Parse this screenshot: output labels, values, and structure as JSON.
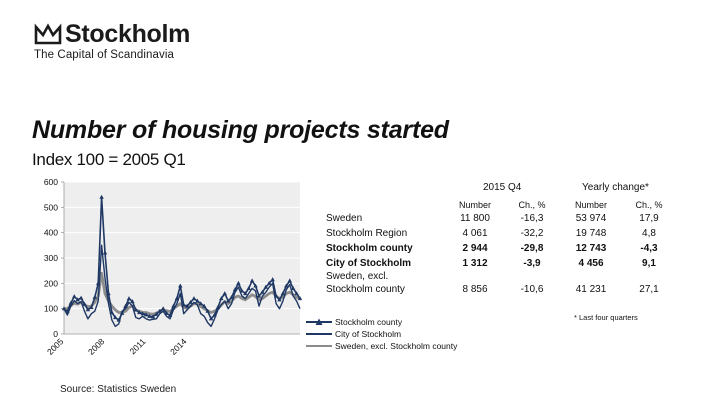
{
  "brand": {
    "name": "Stockholm",
    "tagline": "The Capital of Scandinavia"
  },
  "title": "Number of housing projects started",
  "subtitle": "Index 100 = 2005 Q1",
  "source": "Source: Statistics Sweden",
  "colors": {
    "county": "#1f3864",
    "city": "#1f3864",
    "sweden": "#8c8c8c",
    "plot_bg": "#eeeeee"
  },
  "chart_data": {
    "type": "line",
    "title": "Number of housing projects started",
    "subtitle": "Index 100 = 2005 Q1",
    "xlabel": "",
    "ylabel": "",
    "ylim": [
      0,
      600
    ],
    "yticks": [
      0,
      100,
      200,
      300,
      400,
      500,
      600
    ],
    "xtick_labels": [
      "2005",
      "2008",
      "2011",
      "2014"
    ],
    "x_start": "2005 Q1",
    "x_end": "2015 Q4",
    "series": [
      {
        "name": "Stockholm county",
        "marker": "triangle",
        "values": [
          100,
          88,
          122,
          148,
          135,
          142,
          118,
          96,
          105,
          145,
          200,
          540,
          320,
          160,
          85,
          65,
          55,
          82,
          110,
          140,
          128,
          95,
          85,
          80,
          76,
          70,
          68,
          78,
          90,
          100,
          82,
          73,
          110,
          140,
          190,
          115,
          110,
          125,
          140,
          130,
          120,
          110,
          90,
          60,
          75,
          105,
          140,
          160,
          130,
          145,
          175,
          200,
          170,
          160,
          180,
          210,
          190,
          150,
          165,
          185,
          200,
          215,
          150,
          135,
          160,
          190,
          210,
          180,
          160,
          140
        ]
      },
      {
        "name": "City of Stockholm",
        "marker": "line",
        "values": [
          100,
          75,
          110,
          132,
          120,
          128,
          90,
          60,
          80,
          90,
          130,
          350,
          220,
          120,
          55,
          30,
          40,
          90,
          100,
          125,
          110,
          65,
          60,
          70,
          60,
          55,
          58,
          60,
          80,
          90,
          70,
          60,
          95,
          120,
          160,
          80,
          95,
          110,
          125,
          115,
          80,
          70,
          45,
          30,
          60,
          95,
          115,
          130,
          100,
          120,
          165,
          185,
          150,
          140,
          160,
          180,
          170,
          110,
          150,
          165,
          185,
          200,
          120,
          100,
          130,
          175,
          195,
          150,
          130,
          100
        ]
      },
      {
        "name": "Sweden, excl. Stockholm county",
        "marker": "line",
        "values": [
          100,
          100,
          112,
          122,
          118,
          125,
          115,
          108,
          110,
          125,
          150,
          240,
          160,
          130,
          110,
          95,
          85,
          85,
          90,
          105,
          110,
          95,
          90,
          85,
          85,
          80,
          78,
          82,
          90,
          95,
          92,
          88,
          100,
          110,
          120,
          105,
          102,
          110,
          120,
          118,
          108,
          100,
          92,
          85,
          90,
          100,
          115,
          128,
          120,
          130,
          145,
          150,
          140,
          135,
          145,
          155,
          148,
          135,
          140,
          150,
          160,
          165,
          150,
          140,
          145,
          160,
          165,
          155,
          145,
          140
        ]
      }
    ]
  },
  "table": {
    "period_header": "2015 Q4",
    "change_header": "Yearly change*",
    "col_headers": [
      "Number",
      "Ch., %",
      "Number",
      "Ch., %"
    ],
    "rows": [
      {
        "label": "Sweden",
        "bold": false,
        "values": [
          "11 800",
          "-16,3",
          "53 974",
          "17,9"
        ]
      },
      {
        "label": "Stockholm Region",
        "bold": false,
        "values": [
          "4 061",
          "-32,2",
          "19 748",
          "4,8"
        ]
      },
      {
        "label": "Stockholm county",
        "bold": true,
        "values": [
          "2 944",
          "-29,8",
          "12 743",
          "-4,3"
        ]
      },
      {
        "label": "City of Stockholm",
        "bold": true,
        "values": [
          "1 312",
          "-3,9",
          "4 456",
          "9,1"
        ]
      },
      {
        "label": "Sweden, excl. Stockholm county",
        "label_line1": "Sweden, excl.",
        "label_line2": "Stockholm county",
        "bold": false,
        "values": [
          "8 856",
          "-10,6",
          "41 231",
          "27,1"
        ]
      }
    ],
    "note": "* Last four quarters"
  },
  "legend": [
    "Stockholm county",
    "City of Stockholm",
    "Sweden, excl. Stockholm county"
  ]
}
